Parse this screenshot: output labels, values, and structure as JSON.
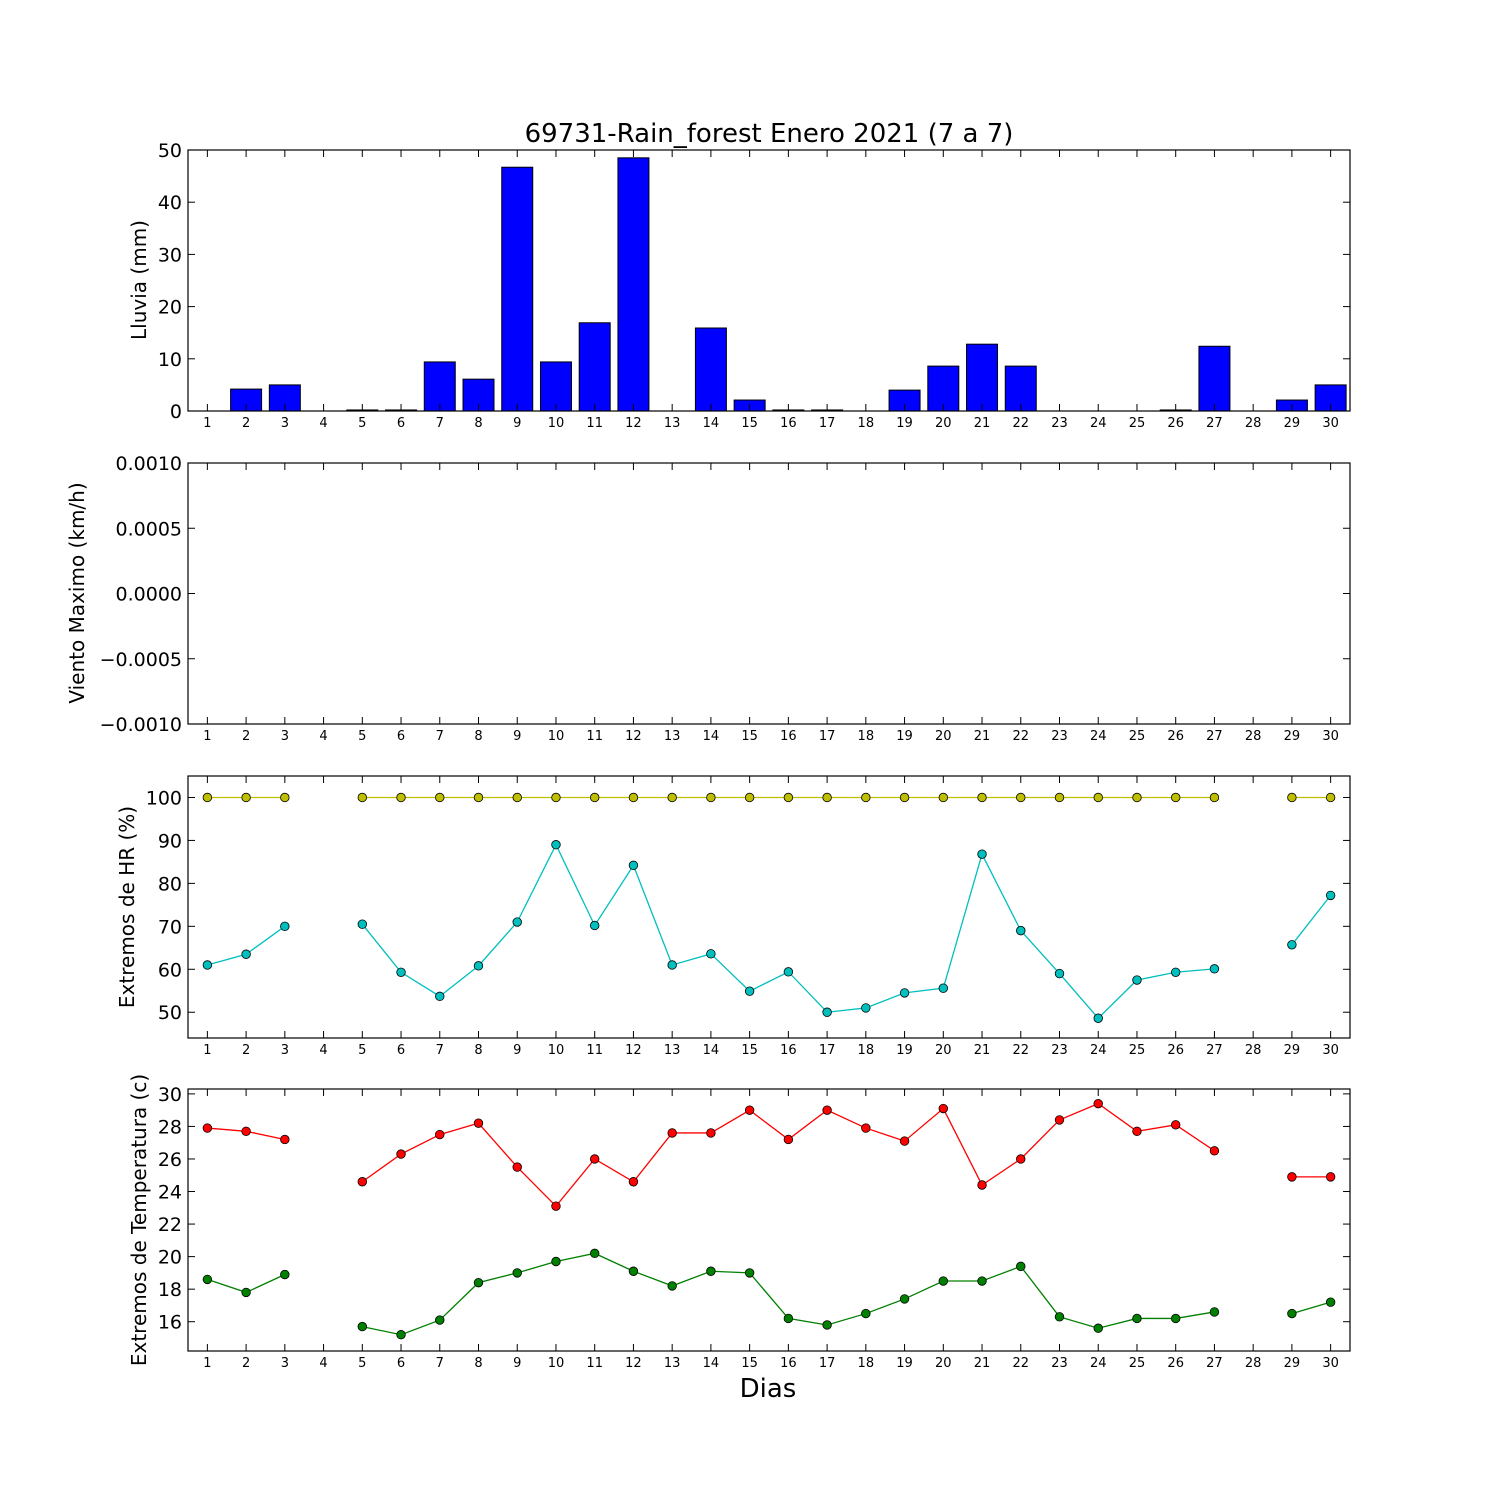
{
  "chart_data": [
    {
      "type": "bar",
      "title": "69731-Rain_forest Enero 2021  (7 a 7)",
      "ylabel": "Lluvia (mm)",
      "xlabel": "",
      "ylim": [
        0,
        50
      ],
      "yticks": [
        "0",
        "10",
        "20",
        "30",
        "40",
        "50"
      ],
      "x": [
        1,
        2,
        3,
        4,
        5,
        6,
        7,
        8,
        9,
        10,
        11,
        12,
        13,
        14,
        15,
        16,
        17,
        18,
        19,
        20,
        21,
        22,
        23,
        24,
        25,
        26,
        27,
        28,
        29,
        30
      ],
      "values": [
        0,
        4.2,
        5.0,
        0,
        0.2,
        0.2,
        9.4,
        6.1,
        46.7,
        9.4,
        16.9,
        48.5,
        0,
        15.9,
        2.1,
        0.2,
        0.2,
        0,
        4.0,
        8.6,
        12.8,
        8.6,
        0,
        0,
        0,
        0.2,
        12.4,
        0,
        2.1,
        5.0
      ],
      "bar_color": "#0000ff",
      "grid": false
    },
    {
      "type": "line",
      "ylabel": "Viento Maximo (km/h)",
      "xlabel": "",
      "ylim": [
        -0.001,
        0.001
      ],
      "yticks": [
        "−0.0010",
        "−0.0005",
        "0.0000",
        "0.0005",
        "0.0010"
      ],
      "x": [
        1,
        2,
        3,
        4,
        5,
        6,
        7,
        8,
        9,
        10,
        11,
        12,
        13,
        14,
        15,
        16,
        17,
        18,
        19,
        20,
        21,
        22,
        23,
        24,
        25,
        26,
        27,
        28,
        29,
        30
      ],
      "series": [],
      "grid": false
    },
    {
      "type": "line",
      "ylabel": "Extremos de HR (%)",
      "xlabel": "",
      "ylim": [
        44,
        105
      ],
      "yticks": [
        "50",
        "60",
        "70",
        "80",
        "90",
        "100"
      ],
      "x": [
        1,
        2,
        3,
        4,
        5,
        6,
        7,
        8,
        9,
        10,
        11,
        12,
        13,
        14,
        15,
        16,
        17,
        18,
        19,
        20,
        21,
        22,
        23,
        24,
        25,
        26,
        27,
        28,
        29,
        30
      ],
      "series": [
        {
          "color": "#bfbf00",
          "values": [
            100,
            100,
            100,
            null,
            100,
            100,
            100,
            100,
            100,
            100,
            100,
            100,
            100,
            100,
            100,
            100,
            100,
            100,
            100,
            100,
            100,
            100,
            100,
            100,
            100,
            100,
            100,
            null,
            100,
            100
          ]
        },
        {
          "color": "#00bfbf",
          "values": [
            61,
            63.5,
            70,
            null,
            70.5,
            59.3,
            53.7,
            60.8,
            71,
            89,
            70.2,
            84.2,
            61,
            63.6,
            54.9,
            59.4,
            50,
            51,
            54.5,
            55.6,
            86.8,
            69,
            59,
            48.6,
            57.5,
            59.3,
            60.1,
            null,
            65.7,
            77.2
          ]
        }
      ],
      "grid": false
    },
    {
      "type": "line",
      "ylabel": "Extremos de Temperatura (c)",
      "xlabel": "Dias",
      "ylim": [
        14.2,
        30.3
      ],
      "yticks": [
        "16",
        "18",
        "20",
        "22",
        "24",
        "26",
        "28",
        "30"
      ],
      "x": [
        1,
        2,
        3,
        4,
        5,
        6,
        7,
        8,
        9,
        10,
        11,
        12,
        13,
        14,
        15,
        16,
        17,
        18,
        19,
        20,
        21,
        22,
        23,
        24,
        25,
        26,
        27,
        28,
        29,
        30
      ],
      "series": [
        {
          "color": "#ff0000",
          "values": [
            27.9,
            27.7,
            27.2,
            null,
            24.6,
            26.3,
            27.5,
            28.2,
            25.5,
            23.1,
            26,
            24.6,
            27.6,
            27.6,
            29,
            27.2,
            29,
            27.9,
            27.1,
            29.1,
            24.4,
            26,
            28.4,
            29.4,
            27.7,
            28.1,
            26.5,
            null,
            24.9,
            24.9
          ]
        },
        {
          "color": "#008000",
          "values": [
            18.6,
            17.8,
            18.9,
            null,
            15.7,
            15.2,
            16.1,
            18.4,
            19,
            19.7,
            20.2,
            19.1,
            18.2,
            19.1,
            19,
            16.2,
            15.8,
            16.5,
            17.4,
            18.5,
            18.5,
            19.4,
            16.3,
            15.6,
            16.2,
            16.2,
            16.6,
            null,
            16.5,
            17.2
          ]
        }
      ],
      "grid": false
    }
  ]
}
